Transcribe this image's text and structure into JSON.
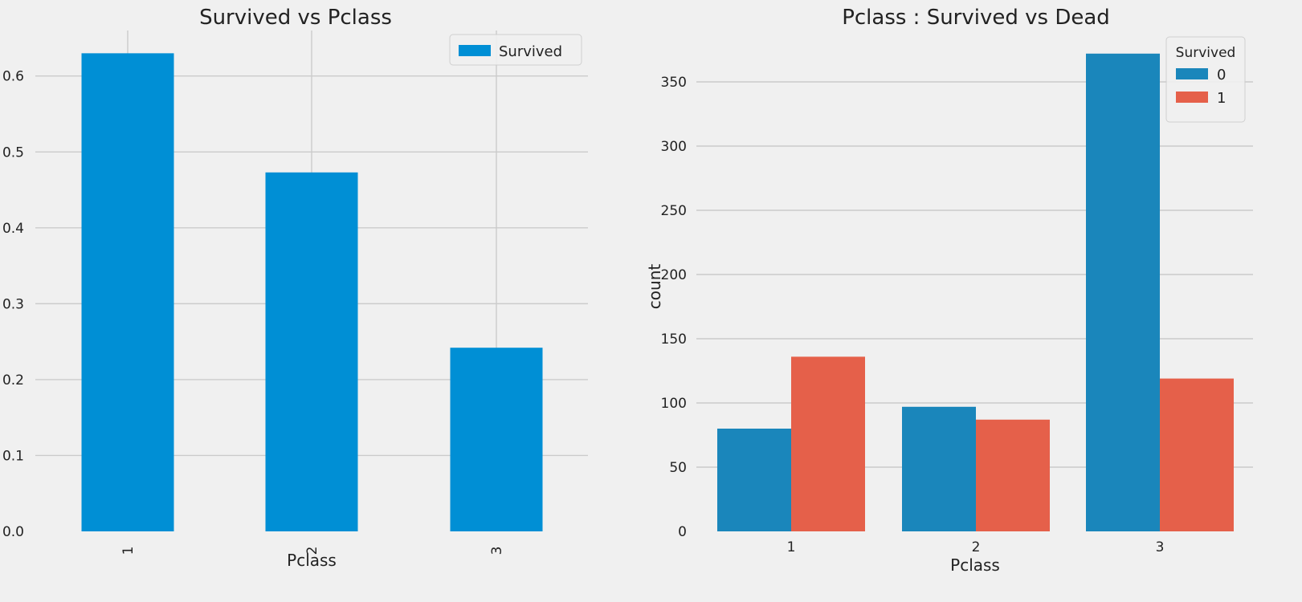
{
  "colors": {
    "figure_bg": "#f0f0f0",
    "grid": "#cbcbcb",
    "bar_blue": "#008fd5",
    "hue_0": "#1a86bb",
    "hue_1": "#e5604a",
    "text": "#222222"
  },
  "chart_data": [
    {
      "type": "bar",
      "title": "Survived vs Pclass",
      "xlabel": "Pclass",
      "ylabel": "",
      "categories": [
        "1",
        "2",
        "3"
      ],
      "series": [
        {
          "name": "Survived",
          "values": [
            0.63,
            0.473,
            0.242
          ]
        }
      ],
      "ylim": [
        0,
        0.66
      ],
      "yticks": [
        "0.0",
        "0.1",
        "0.2",
        "0.3",
        "0.4",
        "0.5",
        "0.6"
      ],
      "xtick_rotation": "vertical",
      "grid": true,
      "legend": {
        "position": "top-right",
        "title": ""
      }
    },
    {
      "type": "bar",
      "title": "Pclass : Survived vs Dead",
      "xlabel": "Pclass",
      "ylabel": "count",
      "categories": [
        "1",
        "2",
        "3"
      ],
      "series": [
        {
          "name": "0",
          "values": [
            80,
            97,
            372
          ]
        },
        {
          "name": "1",
          "values": [
            136,
            87,
            119
          ]
        }
      ],
      "ylim": [
        0,
        390
      ],
      "yticks": [
        "0",
        "50",
        "100",
        "150",
        "200",
        "250",
        "300",
        "350"
      ],
      "grid": true,
      "legend": {
        "position": "top-right",
        "title": "Survived"
      }
    }
  ]
}
